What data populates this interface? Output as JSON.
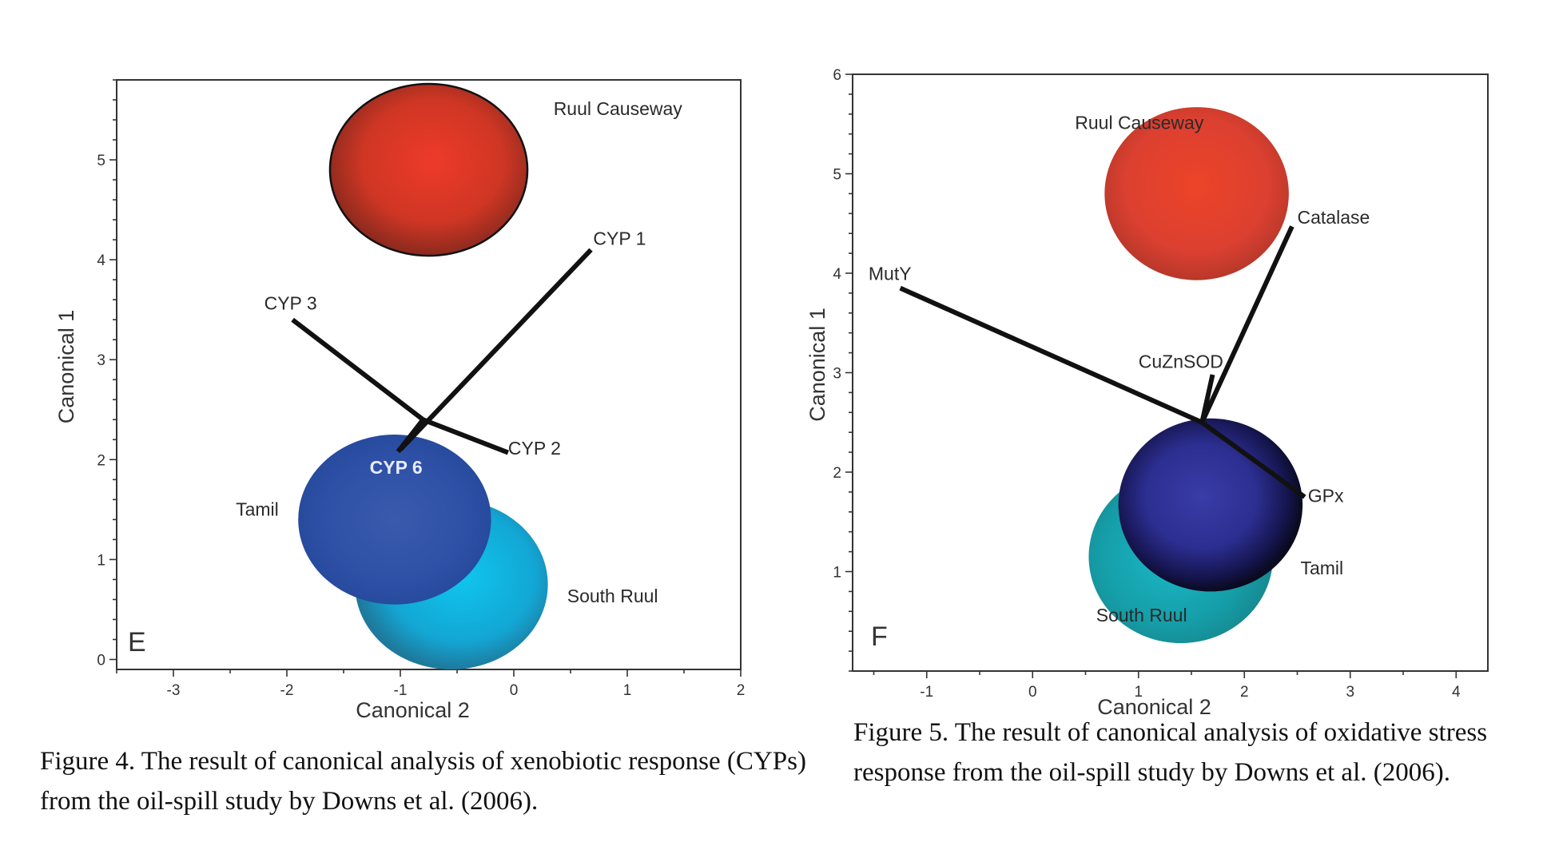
{
  "chart_data": [
    {
      "type": "biplot",
      "panel_label": "E",
      "xlabel": "Canonical 2",
      "ylabel": "Canonical 1",
      "xlim": [
        -3.5,
        2
      ],
      "ylim": [
        -0.1,
        5.8
      ],
      "xticks": [
        -3,
        -2,
        -1,
        0,
        1,
        2
      ],
      "yticks": [
        0,
        1,
        2,
        3,
        4,
        5
      ],
      "groups": [
        {
          "name": "Ruul Causeway",
          "cx": -0.75,
          "cy": 4.9,
          "rx": 0.87,
          "ry": 0.86,
          "color_center": "#ee3a2a",
          "color_edge": "#8a2a1e",
          "outlined": true
        },
        {
          "name": "South Ruul",
          "cx": -0.55,
          "cy": 0.75,
          "rx": 0.85,
          "ry": 0.85,
          "color_center": "#0fc6ee",
          "color_edge": "#1e7a9c",
          "outlined": false
        },
        {
          "name": "Tamil",
          "cx": -1.05,
          "cy": 1.4,
          "rx": 0.85,
          "ry": 0.85,
          "color_center": "#3a5aac",
          "color_edge": "#24489a",
          "outlined": false
        }
      ],
      "vectors": [
        {
          "name": "CYP 1",
          "x0": -1.0,
          "y0": 2.1,
          "x1": 0.68,
          "y1": 4.1
        },
        {
          "name": "CYP 3",
          "x0": -0.8,
          "y0": 2.4,
          "x1": -1.95,
          "y1": 3.4
        },
        {
          "name": "CYP 2",
          "x0": -0.8,
          "y0": 2.4,
          "x1": -0.05,
          "y1": 2.07
        },
        {
          "name": "CYP 6",
          "x0": -0.8,
          "y0": 2.4,
          "x1": -1.02,
          "y1": 2.08
        }
      ],
      "labels": [
        {
          "text": "Ruul Causeway",
          "x": 0.35,
          "y": 5.45
        },
        {
          "text": "CYP 1",
          "x": 0.7,
          "y": 4.15
        },
        {
          "text": "CYP 3",
          "x": -2.2,
          "y": 3.5
        },
        {
          "text": "CYP 2",
          "x": -0.05,
          "y": 2.05
        },
        {
          "text": "CYP 6",
          "x": -1.27,
          "y": 1.86
        },
        {
          "text": "Tamil",
          "x": -2.45,
          "y": 1.44
        },
        {
          "text": "South Ruul",
          "x": 0.47,
          "y": 0.57
        }
      ]
    },
    {
      "type": "biplot",
      "panel_label": "F",
      "xlabel": "Canonical 2",
      "ylabel": "Canonical 1",
      "xlim": [
        -1.7,
        4.3
      ],
      "ylim": [
        0,
        6
      ],
      "xticks": [
        -1,
        0,
        1,
        2,
        3,
        4
      ],
      "yticks": [
        1,
        2,
        3,
        4,
        5,
        6
      ],
      "groups": [
        {
          "name": "Ruul Causeway",
          "cx": 1.55,
          "cy": 4.8,
          "rx": 0.87,
          "ry": 0.87,
          "color_center": "#ec4428",
          "color_edge": "#b8382a",
          "outlined": false
        },
        {
          "name": "South Ruul",
          "cx": 1.4,
          "cy": 1.15,
          "rx": 0.87,
          "ry": 0.87,
          "color_center": "#1ab8c8",
          "color_edge": "#178a92",
          "outlined": false
        },
        {
          "name": "Tamil",
          "cx": 1.68,
          "cy": 1.67,
          "rx": 0.87,
          "ry": 0.87,
          "color_center": "#3a3ca8",
          "color_edge": "#0a0a20",
          "outlined": false
        }
      ],
      "vectors": [
        {
          "name": "MutY",
          "x0": 1.6,
          "y0": 2.5,
          "x1": -1.25,
          "y1": 3.85
        },
        {
          "name": "Catalase",
          "x0": 1.6,
          "y0": 2.5,
          "x1": 2.45,
          "y1": 4.47
        },
        {
          "name": "CuZnSOD",
          "x0": 1.6,
          "y0": 2.5,
          "x1": 1.7,
          "y1": 2.98
        },
        {
          "name": "GPx",
          "x0": 1.6,
          "y0": 2.5,
          "x1": 2.57,
          "y1": 1.75
        }
      ],
      "labels": [
        {
          "text": "Ruul Causeway",
          "x": 0.4,
          "y": 5.45
        },
        {
          "text": "Catalase",
          "x": 2.5,
          "y": 4.5
        },
        {
          "text": "MutY",
          "x": -1.55,
          "y": 3.93
        },
        {
          "text": "CuZnSOD",
          "x": 1.0,
          "y": 3.05
        },
        {
          "text": "GPx",
          "x": 2.6,
          "y": 1.7
        },
        {
          "text": "Tamil",
          "x": 2.53,
          "y": 0.97
        },
        {
          "text": "South Ruul",
          "x": 0.6,
          "y": 0.5
        }
      ]
    }
  ],
  "captions": {
    "figure4": "Figure 4. The result of canonical analysis of xenobiotic response (CYPs) from the oil-spill study by Downs et al. (2006).",
    "figure5": "Figure 5. The result of canonical analysis of oxidative stress response from the oil-spill study by Downs et al. (2006)."
  }
}
